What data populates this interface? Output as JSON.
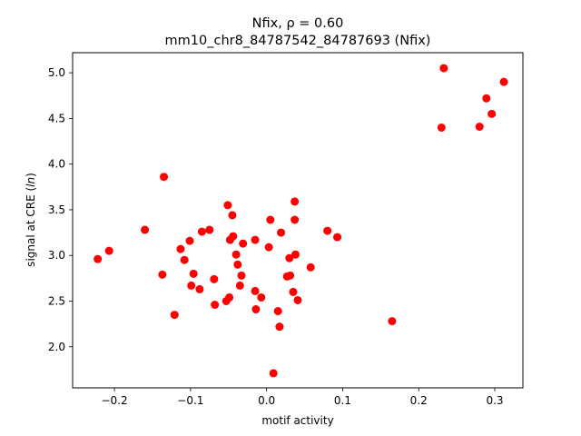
{
  "chart_data": {
    "type": "scatter",
    "title_line1": "Nfix, ρ = 0.60",
    "title_line2": "mm10_chr8_84787542_84787693 (Nfix)",
    "xlabel": "motif activity",
    "ylabel": "signal at CRE (ln)",
    "xlim": [
      -0.255,
      0.337
    ],
    "ylim": [
      1.55,
      5.22
    ],
    "xticks": [
      -0.2,
      -0.1,
      0.0,
      0.1,
      0.2,
      0.3
    ],
    "xtick_labels": [
      "−0.2",
      "−0.1",
      "0.0",
      "0.1",
      "0.2",
      "0.3"
    ],
    "yticks": [
      2.0,
      2.5,
      3.0,
      3.5,
      4.0,
      4.5,
      5.0
    ],
    "ytick_labels": [
      "2.0",
      "2.5",
      "3.0",
      "3.5",
      "4.0",
      "4.5",
      "5.0"
    ],
    "grid": false,
    "marker_color": "#ff0000",
    "points": [
      {
        "x": -0.222,
        "y": 2.96
      },
      {
        "x": -0.207,
        "y": 3.05
      },
      {
        "x": -0.16,
        "y": 3.28
      },
      {
        "x": -0.137,
        "y": 2.79
      },
      {
        "x": -0.135,
        "y": 3.86
      },
      {
        "x": -0.121,
        "y": 2.35
      },
      {
        "x": -0.113,
        "y": 3.07
      },
      {
        "x": -0.108,
        "y": 2.95
      },
      {
        "x": -0.101,
        "y": 3.16
      },
      {
        "x": -0.099,
        "y": 2.67
      },
      {
        "x": -0.096,
        "y": 2.8
      },
      {
        "x": -0.088,
        "y": 2.63
      },
      {
        "x": -0.085,
        "y": 3.26
      },
      {
        "x": -0.075,
        "y": 3.28
      },
      {
        "x": -0.069,
        "y": 2.74
      },
      {
        "x": -0.068,
        "y": 2.46
      },
      {
        "x": -0.053,
        "y": 2.5
      },
      {
        "x": -0.051,
        "y": 3.55
      },
      {
        "x": -0.049,
        "y": 2.54
      },
      {
        "x": -0.048,
        "y": 3.17
      },
      {
        "x": -0.045,
        "y": 3.44
      },
      {
        "x": -0.044,
        "y": 3.21
      },
      {
        "x": -0.04,
        "y": 3.01
      },
      {
        "x": -0.038,
        "y": 2.9
      },
      {
        "x": -0.035,
        "y": 2.67
      },
      {
        "x": -0.033,
        "y": 2.78
      },
      {
        "x": -0.031,
        "y": 3.13
      },
      {
        "x": -0.015,
        "y": 3.17
      },
      {
        "x": -0.015,
        "y": 2.61
      },
      {
        "x": -0.014,
        "y": 2.41
      },
      {
        "x": -0.007,
        "y": 2.54
      },
      {
        "x": 0.003,
        "y": 3.09
      },
      {
        "x": 0.005,
        "y": 3.39
      },
      {
        "x": 0.009,
        "y": 1.71
      },
      {
        "x": 0.015,
        "y": 2.39
      },
      {
        "x": 0.017,
        "y": 2.22
      },
      {
        "x": 0.019,
        "y": 3.25
      },
      {
        "x": 0.027,
        "y": 2.77
      },
      {
        "x": 0.03,
        "y": 2.97
      },
      {
        "x": 0.031,
        "y": 2.78
      },
      {
        "x": 0.035,
        "y": 2.6
      },
      {
        "x": 0.037,
        "y": 3.59
      },
      {
        "x": 0.037,
        "y": 3.39
      },
      {
        "x": 0.038,
        "y": 3.01
      },
      {
        "x": 0.041,
        "y": 2.51
      },
      {
        "x": 0.058,
        "y": 2.87
      },
      {
        "x": 0.08,
        "y": 3.27
      },
      {
        "x": 0.093,
        "y": 3.2
      },
      {
        "x": 0.165,
        "y": 2.28
      },
      {
        "x": 0.23,
        "y": 4.4
      },
      {
        "x": 0.233,
        "y": 5.05
      },
      {
        "x": 0.28,
        "y": 4.41
      },
      {
        "x": 0.289,
        "y": 4.72
      },
      {
        "x": 0.296,
        "y": 4.55
      },
      {
        "x": 0.312,
        "y": 4.9
      }
    ]
  }
}
